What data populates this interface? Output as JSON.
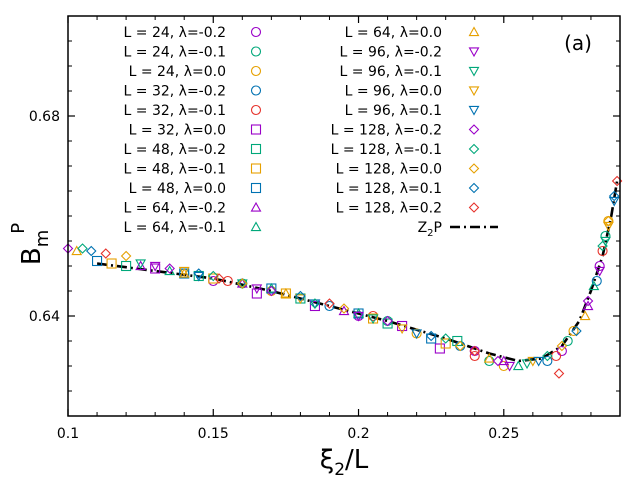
{
  "chart_data": {
    "type": "scatter",
    "panel_label": "(a)",
    "xlabel": "ξ2/L",
    "ylabel": "Bm P",
    "xlim": [
      0.1,
      0.29
    ],
    "ylim": [
      0.62,
      0.7
    ],
    "xticks": [
      0.1,
      0.15,
      0.2,
      0.25
    ],
    "xtick_labels": [
      "0.1",
      "0.15",
      "0.2",
      "0.25"
    ],
    "yticks": [
      0.64,
      0.68
    ],
    "ytick_labels": [
      "0.64",
      "0.68"
    ],
    "legend": {
      "placement": "top",
      "columns": 2,
      "fit_label": "Z2P"
    },
    "fit_curve": {
      "name": "Z2P",
      "style": "dash-dot",
      "color": "#000000",
      "x": [
        0.11,
        0.13,
        0.15,
        0.17,
        0.19,
        0.21,
        0.23,
        0.245,
        0.255,
        0.263,
        0.27,
        0.276,
        0.28,
        0.284,
        0.287,
        0.289
      ],
      "y": [
        0.6505,
        0.649,
        0.6475,
        0.645,
        0.642,
        0.639,
        0.6355,
        0.6325,
        0.631,
        0.6315,
        0.634,
        0.639,
        0.645,
        0.652,
        0.66,
        0.667
      ]
    },
    "series": [
      {
        "name": "L = 24, λ=-0.2",
        "marker": "circle",
        "color": "#9a00c8",
        "x": [
          0.15,
          0.2,
          0.24,
          0.27,
          0.283
        ],
        "y": [
          0.647,
          0.64,
          0.633,
          0.633,
          0.65
        ]
      },
      {
        "name": "L = 24, λ=-0.1",
        "marker": "circle",
        "color": "#00a87a",
        "x": [
          0.16,
          0.21,
          0.245,
          0.272,
          0.285
        ],
        "y": [
          0.6465,
          0.639,
          0.631,
          0.635,
          0.656
        ]
      },
      {
        "name": "L = 24, λ=0.0",
        "marker": "circle",
        "color": "#e6a000",
        "x": [
          0.17,
          0.22,
          0.25,
          0.274,
          0.286
        ],
        "y": [
          0.645,
          0.6365,
          0.63,
          0.637,
          0.659
        ]
      },
      {
        "name": "L = 32, λ=-0.2",
        "marker": "circle",
        "color": "#0072b2",
        "x": [
          0.14,
          0.19,
          0.235,
          0.265,
          0.282
        ],
        "y": [
          0.6485,
          0.642,
          0.634,
          0.631,
          0.647
        ]
      },
      {
        "name": "L = 32, λ=-0.1",
        "marker": "circle",
        "color": "#e6322b",
        "x": [
          0.155,
          0.205,
          0.24,
          0.268,
          0.284
        ],
        "y": [
          0.647,
          0.64,
          0.632,
          0.632,
          0.653
        ]
      },
      {
        "name": "L = 32, λ=0.0",
        "marker": "square",
        "color": "#9a00c8",
        "x": [
          0.13,
          0.165,
          0.185,
          0.215,
          0.228
        ],
        "y": [
          0.6495,
          0.6445,
          0.642,
          0.638,
          0.6335
        ]
      },
      {
        "name": "L = 48, λ=-0.2",
        "marker": "square",
        "color": "#00a87a",
        "x": [
          0.12,
          0.145,
          0.18,
          0.21,
          0.234
        ],
        "y": [
          0.65,
          0.648,
          0.6435,
          0.6385,
          0.635
        ]
      },
      {
        "name": "L = 48, λ=-0.1",
        "marker": "square",
        "color": "#e6a000",
        "x": [
          0.115,
          0.15,
          0.175,
          0.205,
          0.23
        ],
        "y": [
          0.6505,
          0.6475,
          0.6445,
          0.6395,
          0.6345
        ]
      },
      {
        "name": "L = 48, λ=0.0",
        "marker": "square",
        "color": "#0072b2",
        "x": [
          0.11,
          0.14,
          0.17,
          0.2,
          0.225
        ],
        "y": [
          0.651,
          0.6485,
          0.6455,
          0.6405,
          0.6355
        ]
      },
      {
        "name": "L = 64, λ=-0.2",
        "marker": "triangle-up",
        "color": "#9a00c8",
        "x": [
          0.125,
          0.16,
          0.195,
          0.25,
          0.279
        ],
        "y": [
          0.65,
          0.6465,
          0.641,
          0.631,
          0.642
        ]
      },
      {
        "name": "L = 64, λ=-0.1",
        "marker": "triangle-up",
        "color": "#00a87a",
        "x": [
          0.135,
          0.17,
          0.2,
          0.255,
          0.281
        ],
        "y": [
          0.649,
          0.6455,
          0.6405,
          0.63,
          0.646
        ]
      },
      {
        "name": "L = 64, λ=0.0",
        "marker": "triangle-up",
        "color": "#e6a000",
        "x": [
          0.103,
          0.14,
          0.175,
          0.245,
          0.278
        ],
        "y": [
          0.653,
          0.6485,
          0.6445,
          0.6315,
          0.64
        ]
      },
      {
        "name": "L = 96, λ=-0.2",
        "marker": "triangle-down",
        "color": "#9a00c8",
        "x": [
          0.13,
          0.165,
          0.2,
          0.252,
          0.283
        ],
        "y": [
          0.65,
          0.6455,
          0.64,
          0.63,
          0.649
        ]
      },
      {
        "name": "L = 96, λ=-0.1",
        "marker": "triangle-down",
        "color": "#00a87a",
        "x": [
          0.125,
          0.16,
          0.205,
          0.258,
          0.285
        ],
        "y": [
          0.6505,
          0.6465,
          0.6395,
          0.6305,
          0.655
        ]
      },
      {
        "name": "L = 96, λ=0.0",
        "marker": "triangle-down",
        "color": "#e6a000",
        "x": [
          0.14,
          0.18,
          0.215,
          0.26,
          0.286
        ],
        "y": [
          0.649,
          0.6435,
          0.6375,
          0.631,
          0.658
        ]
      },
      {
        "name": "L = 96, λ=0.1",
        "marker": "triangle-down",
        "color": "#0072b2",
        "x": [
          0.145,
          0.185,
          0.22,
          0.262,
          0.288
        ],
        "y": [
          0.648,
          0.6425,
          0.6365,
          0.631,
          0.663
        ]
      },
      {
        "name": "L = 128, λ=-0.2",
        "marker": "diamond",
        "color": "#9a00c8",
        "x": [
          0.1,
          0.135,
          0.17,
          0.21,
          0.248,
          0.279
        ],
        "y": [
          0.6535,
          0.6495,
          0.645,
          0.639,
          0.631,
          0.643
        ]
      },
      {
        "name": "L = 128, λ=-0.1",
        "marker": "diamond",
        "color": "#00a87a",
        "x": [
          0.105,
          0.15,
          0.185,
          0.23,
          0.265,
          0.284
        ],
        "y": [
          0.6535,
          0.648,
          0.6425,
          0.6355,
          0.632,
          0.654
        ]
      },
      {
        "name": "L = 128, λ=0.0",
        "marker": "diamond",
        "color": "#e6a000",
        "x": [
          0.12,
          0.16,
          0.195,
          0.235,
          0.27,
          0.286
        ],
        "y": [
          0.652,
          0.6465,
          0.6415,
          0.634,
          0.634,
          0.659
        ]
      },
      {
        "name": "L = 128, λ=0.1",
        "marker": "diamond",
        "color": "#0072b2",
        "x": [
          0.108,
          0.145,
          0.18,
          0.225,
          0.275,
          0.288
        ],
        "y": [
          0.653,
          0.6485,
          0.644,
          0.636,
          0.637,
          0.664
        ]
      },
      {
        "name": "L = 128, λ=0.2",
        "marker": "diamond",
        "color": "#e6322b",
        "x": [
          0.113,
          0.152,
          0.19,
          0.24,
          0.269,
          0.289
        ],
        "y": [
          0.6525,
          0.6475,
          0.6425,
          0.633,
          0.6285,
          0.667
        ]
      }
    ]
  }
}
